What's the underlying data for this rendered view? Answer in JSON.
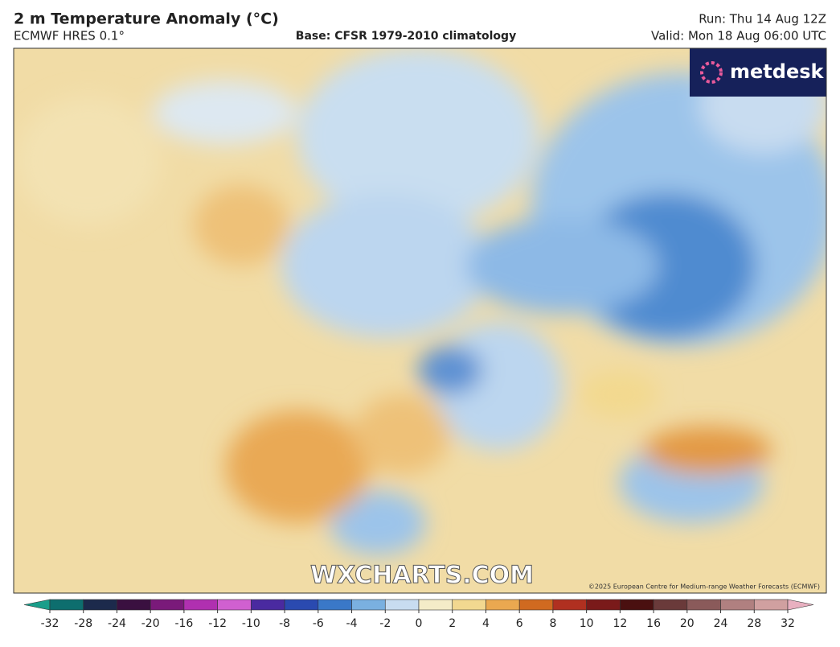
{
  "header": {
    "title": "2 m Temperature Anomaly (°C)",
    "model": "ECMWF HRES 0.1°",
    "base": "Base: CFSR 1979-2010 climatology",
    "run": "Run: Thu 14 Aug 12Z",
    "valid": "Valid: Mon 18 Aug 06:00 UTC"
  },
  "logo": "metdesk",
  "watermark": "WXCHARTS.COM",
  "copyright": "©2025 European Centre for Medium-range Weather Forecasts (ECMWF)",
  "colorbar": {
    "ticks": [
      -32,
      -28,
      -24,
      -20,
      -16,
      -12,
      -10,
      -8,
      -6,
      -4,
      -2,
      0,
      2,
      4,
      6,
      8,
      10,
      12,
      16,
      20,
      24,
      28,
      32
    ],
    "colors": [
      "#1a9e8a",
      "#0d6e6e",
      "#1c2a4c",
      "#3a1040",
      "#7a1a7a",
      "#b030b0",
      "#d060d0",
      "#4a2aa0",
      "#2a4ab0",
      "#3a78c8",
      "#7ab0e0",
      "#c8dcf0",
      "#f4ecc8",
      "#f2d890",
      "#eaa850",
      "#d06a20",
      "#b03020",
      "#7a1a1a",
      "#4a1010",
      "#6a3a3a",
      "#8a5a5a",
      "#b08080",
      "#d0a0a0",
      "#e8b0c0"
    ]
  }
}
